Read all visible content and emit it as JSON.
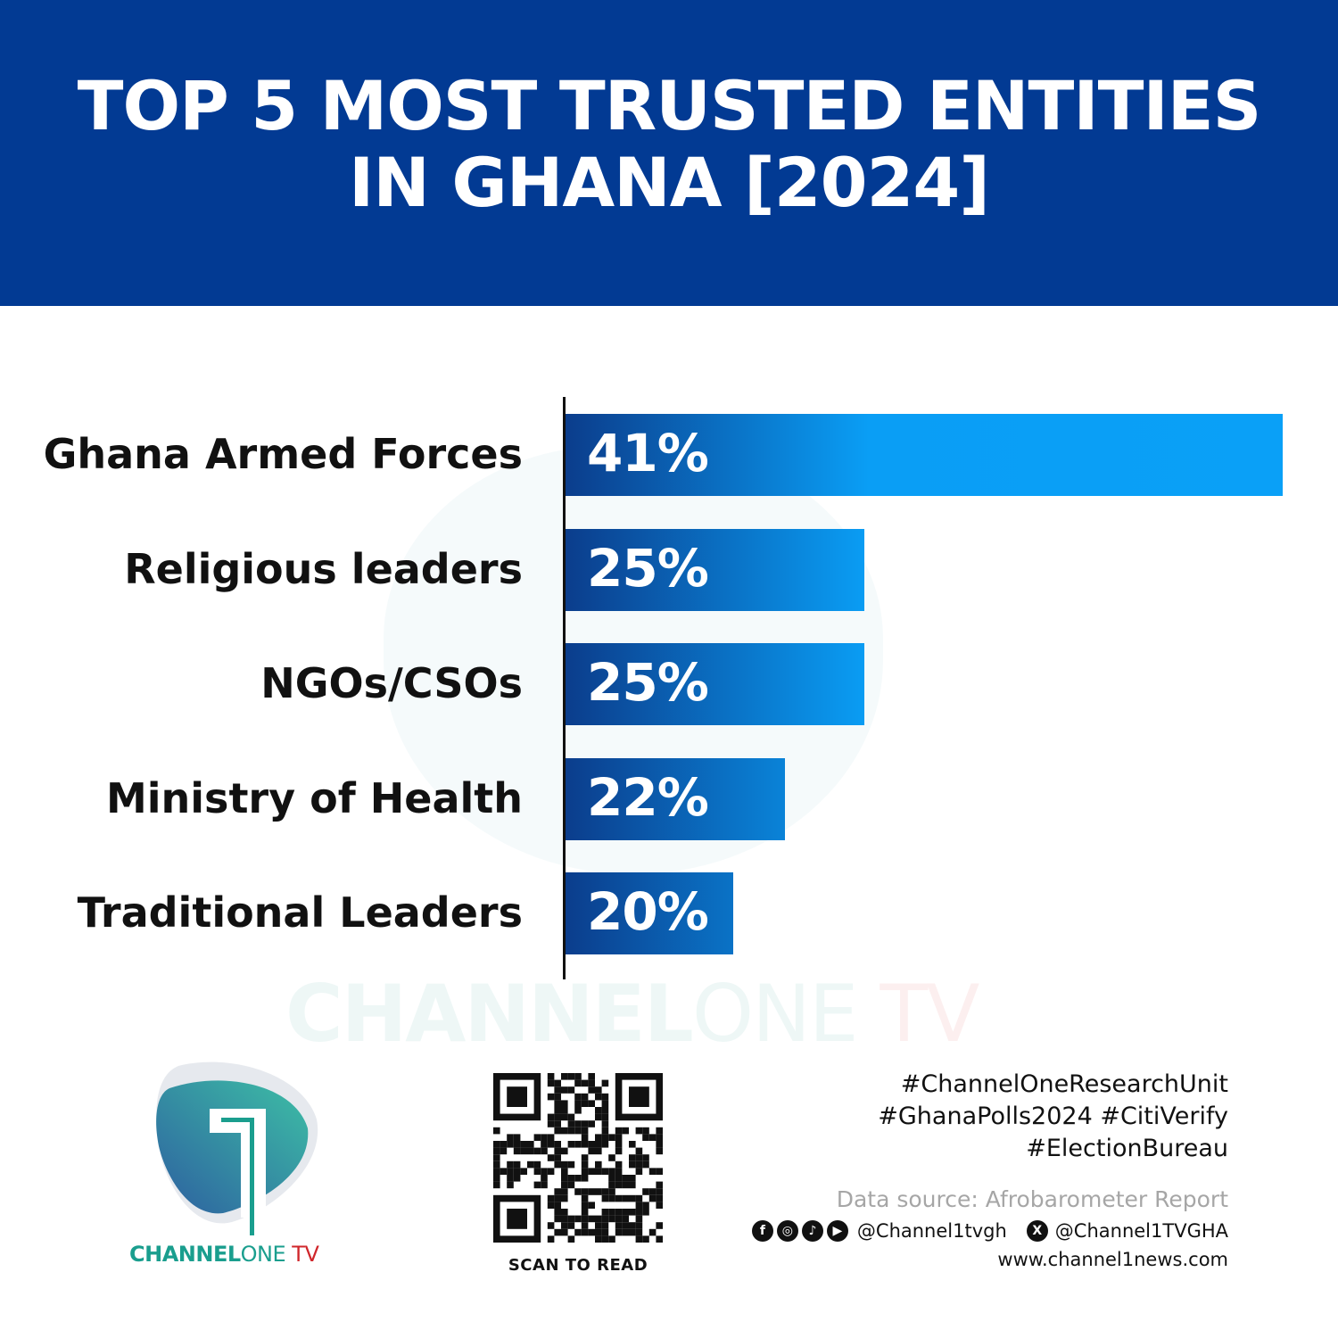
{
  "header": {
    "title_line1": "TOP 5 MOST TRUSTED ENTITIES",
    "title_line2": "IN GHANA [2024]",
    "background": "#023a93"
  },
  "chart_data": {
    "type": "bar",
    "orientation": "horizontal",
    "title": "TOP 5 MOST TRUSTED ENTITIES IN GHANA [2024]",
    "categories": [
      "Ghana Armed Forces",
      "Religious leaders",
      "NGOs/CSOs",
      "Ministry of Health",
      "Traditional Leaders"
    ],
    "values": [
      41,
      25,
      25,
      22,
      20
    ],
    "labels": [
      "41%",
      "25%",
      "25%",
      "22%",
      "20%"
    ],
    "unit": "%",
    "grid": false,
    "bar_color_start": "#0b3d8c",
    "bar_color_end": "#0aa0f7"
  },
  "watermark": {
    "part1": "CHANNEL",
    "part2": "ONE",
    "part3": " TV"
  },
  "logo": {
    "part1": "CHANNEL",
    "part2": "ONE",
    "part3": " TV"
  },
  "qr": {
    "label": "SCAN TO READ"
  },
  "footer": {
    "hashtags": [
      "#ChannelOneResearchUnit",
      "#GhanaPolls2024 #CitiVerify",
      "#ElectionBureau"
    ],
    "source": "Data source: Afrobarometer Report",
    "social_icons": [
      "facebook-icon",
      "instagram-icon",
      "tiktok-icon",
      "youtube-icon"
    ],
    "handle1": "@Channel1tvgh",
    "handle2": "@Channel1TVGHA",
    "website": "www.channel1news.com"
  }
}
